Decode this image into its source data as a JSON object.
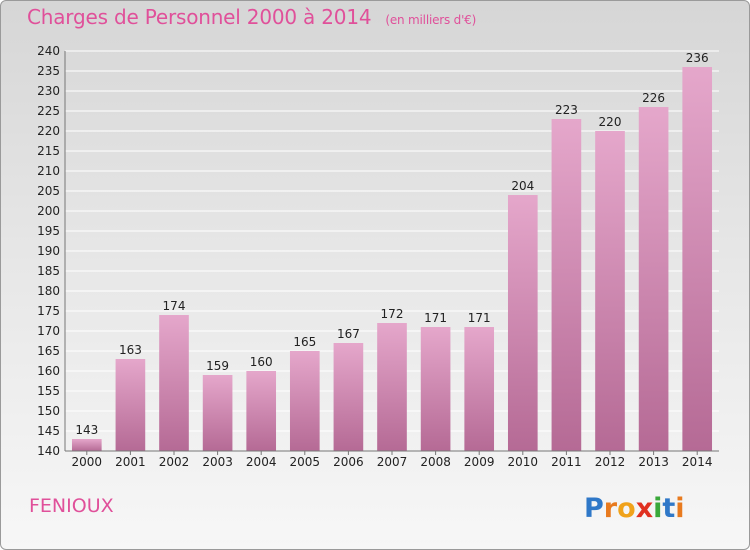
{
  "header": {
    "title": "Charges de Personnel 2000 à 2014",
    "subtitle": "(en milliers d'€)"
  },
  "commune": "FENIOUX",
  "brand": "Proxiti",
  "colors": {
    "title": "#e0509a",
    "bar_light": "#e5a7cb",
    "bar_dark": "#b56a95"
  },
  "chart_data": {
    "type": "bar",
    "title": "Charges de Personnel 2000 à 2014",
    "subtitle": "(en milliers d'€)",
    "xlabel": "",
    "ylabel": "",
    "categories": [
      "2000",
      "2001",
      "2002",
      "2003",
      "2004",
      "2005",
      "2006",
      "2007",
      "2008",
      "2009",
      "2010",
      "2011",
      "2012",
      "2013",
      "2014"
    ],
    "values": [
      143,
      163,
      174,
      159,
      160,
      165,
      167,
      172,
      171,
      171,
      204,
      223,
      220,
      226,
      236
    ],
    "ylim": [
      140,
      240
    ],
    "ytick_step": 5,
    "grid": true
  }
}
